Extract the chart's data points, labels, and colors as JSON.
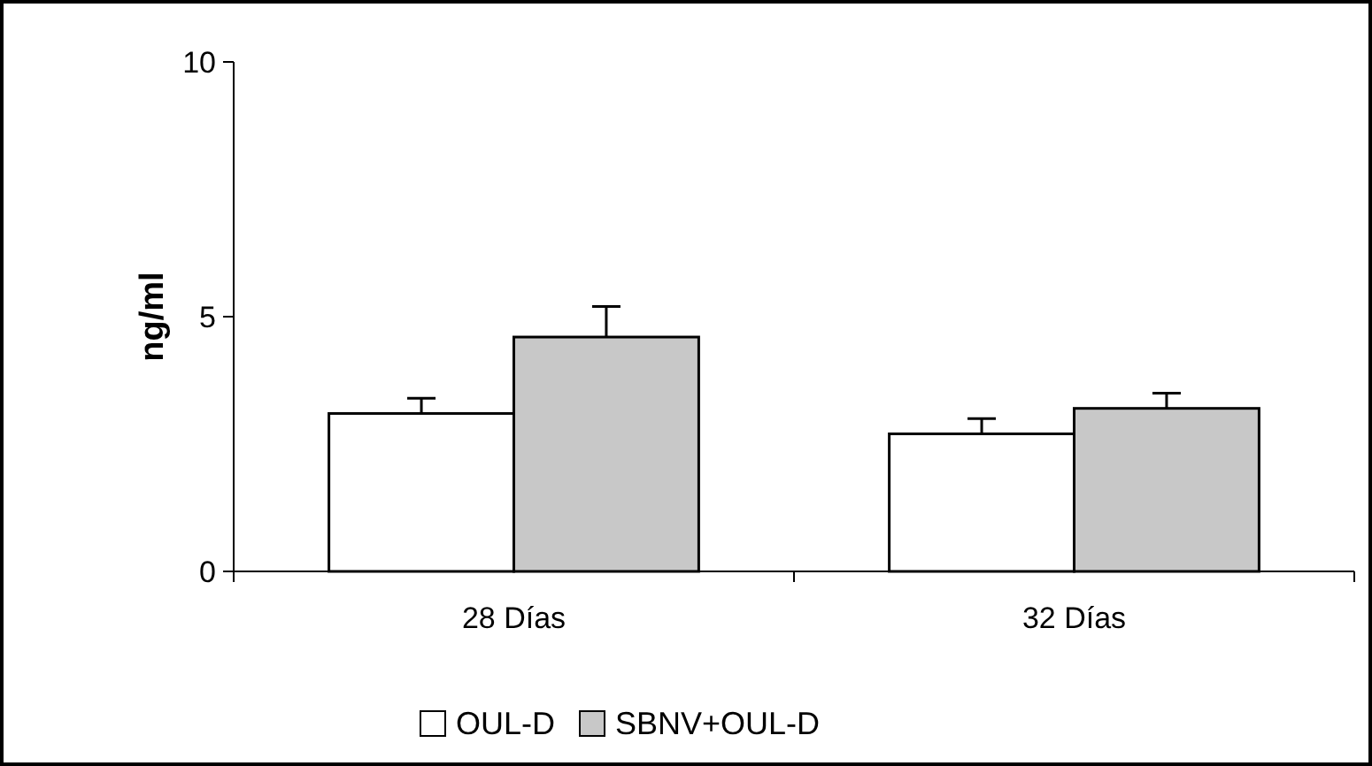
{
  "chart_data": {
    "type": "bar",
    "ylabel": "ng/ml",
    "categories": [
      "28 Días",
      "32 Días"
    ],
    "series": [
      {
        "name": "OUL-D",
        "color": "#ffffff",
        "values": [
          3.1,
          2.7
        ],
        "errors": [
          0.3,
          0.3
        ]
      },
      {
        "name": "SBNV+OUL-D",
        "color": "#c8c8c8",
        "values": [
          4.6,
          3.2
        ],
        "errors": [
          0.6,
          0.3
        ]
      }
    ],
    "ylim": [
      0,
      10
    ],
    "yticks": [
      0,
      5,
      10
    ],
    "grid": false,
    "legend": "bottom"
  }
}
